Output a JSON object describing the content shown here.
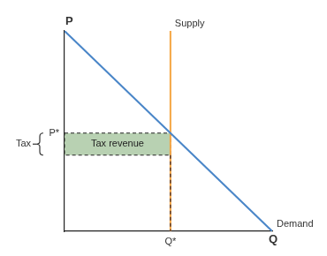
{
  "chart_data": {
    "type": "line",
    "x_label": "Q",
    "y_label": "P",
    "series": [
      {
        "name": "Demand",
        "color": "#4a86c8",
        "x": [
          0,
          10
        ],
        "values": [
          10,
          0
        ]
      },
      {
        "name": "Supply",
        "color": "#f5a542",
        "x": [
          5.1,
          5.1
        ],
        "values": [
          0,
          10
        ]
      }
    ],
    "xlim": [
      0,
      10
    ],
    "ylim": [
      0,
      10
    ],
    "xticks": [
      {
        "value": 5.1,
        "label": "Q*"
      }
    ],
    "yticks": [
      {
        "value": 4.9,
        "label": "P*"
      }
    ],
    "grid": false,
    "annotations": [
      {
        "type": "rect",
        "text": "Tax revenue",
        "x": [
          0,
          5.1
        ],
        "y": [
          3.8,
          4.9
        ],
        "color": "#b8d1b2"
      },
      {
        "type": "bracket",
        "text": "Tax",
        "y": [
          3.8,
          4.9
        ]
      }
    ]
  }
}
